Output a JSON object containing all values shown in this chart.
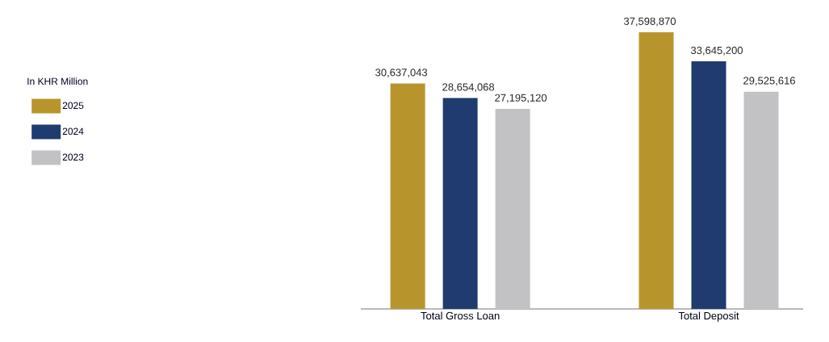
{
  "chart_data": {
    "type": "bar",
    "legend_title": "In KHR Million",
    "categories": [
      "Total Gross Loan",
      "Total Deposit"
    ],
    "series": [
      {
        "name": "2025",
        "color": "#b8952c",
        "values": [
          30637043,
          37598870
        ],
        "value_labels": [
          "30,637,043",
          "37,598,870"
        ]
      },
      {
        "name": "2024",
        "color": "#1f3b70",
        "values": [
          28654068,
          33645200
        ],
        "value_labels": [
          "28,654,068",
          "33,645,200"
        ]
      },
      {
        "name": "2023",
        "color": "#c2c2c4",
        "values": [
          27195120,
          29525616
        ],
        "value_labels": [
          "27,195,120",
          "29,525,616"
        ]
      }
    ],
    "legend": "left"
  }
}
